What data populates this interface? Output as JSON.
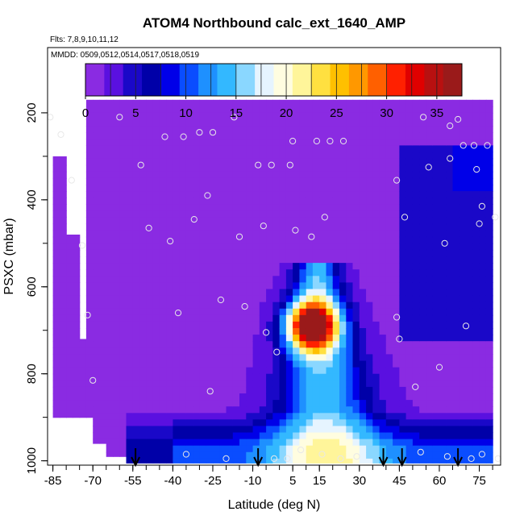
{
  "chart_data": {
    "type": "heatmap",
    "title": "ATOM4 Northbound calc_ext_1640_AMP",
    "flights_note": "Flts: 7,8,9,10,11,12",
    "dates_note": "MMDD: 0509,0512,0514,0517,0518,0519",
    "xlabel": "Latitude (deg N)",
    "ylabel": "PSXC (mbar)",
    "xlim": [
      -87,
      83
    ],
    "ylim": [
      1010,
      50
    ],
    "x_ticks": [
      -85,
      -70,
      -55,
      -40,
      -25,
      -10,
      5,
      15,
      30,
      45,
      60,
      75
    ],
    "y_ticks": [
      200,
      400,
      600,
      800,
      1000
    ],
    "colorbar": {
      "range": [
        0,
        37.5
      ],
      "ticks": [
        0,
        5,
        10,
        15,
        20,
        25,
        30,
        35
      ],
      "colors": [
        "#8a2be2",
        "#5a10e0",
        "#1a08c8",
        "#0000a8",
        "#0000e8",
        "#0a4dff",
        "#1e90ff",
        "#33b8ff",
        "#8ad7ff",
        "#e6f4ff",
        "#fffde0",
        "#fff59a",
        "#ffe040",
        "#ffc000",
        "#ff9800",
        "#ff6000",
        "#ff2000",
        "#e00000",
        "#b81010",
        "#9a1a1a"
      ]
    },
    "arrows_latitude": [
      -54,
      -8,
      39,
      46,
      67
    ],
    "field": {
      "background": 1.5,
      "lat_range": [
        -85,
        80
      ],
      "features": [
        {
          "name": "tropical plume core",
          "lat": 12,
          "p": 690,
          "value": 35
        },
        {
          "name": "tropical column",
          "lat": 14,
          "p_range": [
            560,
            1000
          ],
          "value": 16
        },
        {
          "name": "boundary layer",
          "lat_range": [
            -60,
            80
          ],
          "p_range": [
            900,
            1000
          ],
          "value": 10
        },
        {
          "name": "northern mid-latitudes",
          "lat_range": [
            45,
            80
          ],
          "p_range": [
            280,
            700
          ],
          "value": 5
        }
      ]
    },
    "observation_points": [
      [
        -86,
        210
      ],
      [
        -82,
        250
      ],
      [
        -78,
        355
      ],
      [
        -74,
        505
      ],
      [
        -72,
        665
      ],
      [
        -70,
        815
      ],
      [
        -60,
        210
      ],
      [
        -52,
        320
      ],
      [
        -49,
        465
      ],
      [
        -43,
        255
      ],
      [
        -41,
        495
      ],
      [
        -38,
        660
      ],
      [
        -36,
        255
      ],
      [
        -35,
        985
      ],
      [
        -32,
        445
      ],
      [
        -30,
        245
      ],
      [
        -27,
        390
      ],
      [
        -26,
        840
      ],
      [
        -25,
        245
      ],
      [
        -22,
        630
      ],
      [
        -20,
        995
      ],
      [
        -17,
        210
      ],
      [
        -15,
        485
      ],
      [
        -13,
        645
      ],
      [
        -8,
        320
      ],
      [
        -6,
        460
      ],
      [
        -5,
        705
      ],
      [
        -3,
        320
      ],
      [
        -2,
        995
      ],
      [
        -1,
        750
      ],
      [
        3,
        995
      ],
      [
        4,
        320
      ],
      [
        5,
        265
      ],
      [
        6,
        470
      ],
      [
        8,
        975
      ],
      [
        12,
        485
      ],
      [
        14,
        265
      ],
      [
        16,
        985
      ],
      [
        17,
        440
      ],
      [
        19,
        265
      ],
      [
        23,
        995
      ],
      [
        24,
        265
      ],
      [
        29,
        990
      ],
      [
        44,
        355
      ],
      [
        44,
        670
      ],
      [
        45,
        720
      ],
      [
        47,
        440
      ],
      [
        51,
        830
      ],
      [
        53,
        980
      ],
      [
        54,
        210
      ],
      [
        56,
        325
      ],
      [
        60,
        785
      ],
      [
        62,
        500
      ],
      [
        63,
        990
      ],
      [
        64,
        305
      ],
      [
        64,
        230
      ],
      [
        67,
        215
      ],
      [
        69,
        275
      ],
      [
        70,
        690
      ],
      [
        72,
        995
      ],
      [
        73,
        275
      ],
      [
        74,
        330
      ],
      [
        75,
        455
      ],
      [
        76,
        415
      ],
      [
        76,
        985
      ],
      [
        78,
        275
      ],
      [
        81,
        440
      ],
      [
        82,
        995
      ]
    ]
  }
}
